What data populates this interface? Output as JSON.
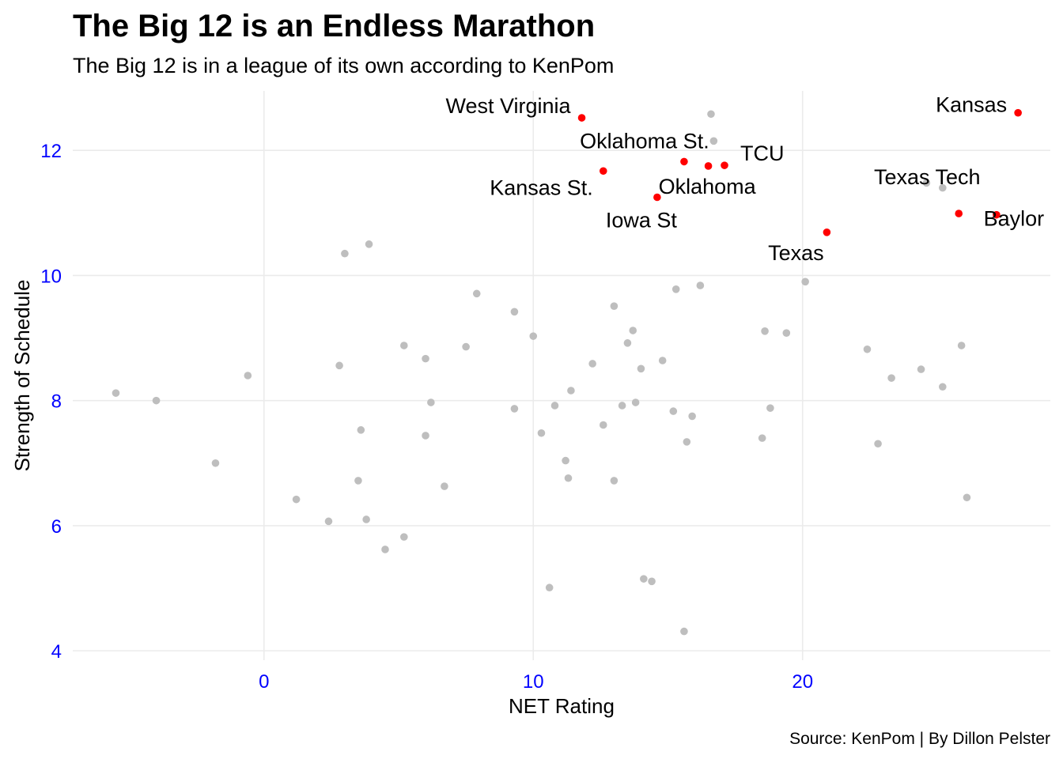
{
  "chart_data": {
    "type": "scatter",
    "title": "The Big 12 is an Endless Marathon",
    "subtitle": "The Big 12 is in a league of its own according to KenPom",
    "xlabel": "NET Rating",
    "ylabel": "Strength of Schedule",
    "caption": "Source: KenPom | By Dillon Pelster",
    "xlim": [
      -7.1,
      29.2
    ],
    "ylim": [
      3.85,
      12.95
    ],
    "xticks": [
      0,
      10,
      20
    ],
    "yticks": [
      4,
      6,
      8,
      10,
      12
    ],
    "tick_color": "#0000ff",
    "grid": true,
    "colors": {
      "background": "#ffffff",
      "grid": "#ebebeb",
      "other_points": "#bebebe",
      "highlight_points": "#ff0000",
      "tick_labels": "#0000ff"
    },
    "series": [
      {
        "name": "",
        "color": "#bebebe",
        "points": [
          {
            "x": -5.5,
            "y": 8.12
          },
          {
            "x": -4.0,
            "y": 8.0
          },
          {
            "x": -1.8,
            "y": 7.0
          },
          {
            "x": -0.6,
            "y": 8.4
          },
          {
            "x": 1.2,
            "y": 6.42
          },
          {
            "x": 2.4,
            "y": 6.07
          },
          {
            "x": 2.8,
            "y": 8.56
          },
          {
            "x": 3.0,
            "y": 10.35
          },
          {
            "x": 3.5,
            "y": 6.72
          },
          {
            "x": 3.6,
            "y": 7.53
          },
          {
            "x": 3.8,
            "y": 6.1
          },
          {
            "x": 3.9,
            "y": 10.5
          },
          {
            "x": 4.5,
            "y": 5.62
          },
          {
            "x": 5.2,
            "y": 8.88
          },
          {
            "x": 5.2,
            "y": 5.82
          },
          {
            "x": 6.0,
            "y": 8.67
          },
          {
            "x": 6.0,
            "y": 7.44
          },
          {
            "x": 6.2,
            "y": 7.97
          },
          {
            "x": 6.7,
            "y": 6.63
          },
          {
            "x": 7.5,
            "y": 8.86
          },
          {
            "x": 7.9,
            "y": 9.71
          },
          {
            "x": 9.3,
            "y": 9.42
          },
          {
            "x": 9.3,
            "y": 7.87
          },
          {
            "x": 10.0,
            "y": 9.03
          },
          {
            "x": 10.3,
            "y": 7.48
          },
          {
            "x": 10.6,
            "y": 5.01
          },
          {
            "x": 10.8,
            "y": 7.92
          },
          {
            "x": 11.2,
            "y": 7.04
          },
          {
            "x": 11.3,
            "y": 6.76
          },
          {
            "x": 11.4,
            "y": 8.16
          },
          {
            "x": 12.2,
            "y": 8.59
          },
          {
            "x": 12.6,
            "y": 7.61
          },
          {
            "x": 13.0,
            "y": 9.51
          },
          {
            "x": 13.0,
            "y": 6.72
          },
          {
            "x": 13.3,
            "y": 7.92
          },
          {
            "x": 13.5,
            "y": 8.92
          },
          {
            "x": 13.7,
            "y": 9.12
          },
          {
            "x": 13.8,
            "y": 7.97
          },
          {
            "x": 14.0,
            "y": 8.51
          },
          {
            "x": 14.1,
            "y": 5.15
          },
          {
            "x": 14.4,
            "y": 5.11
          },
          {
            "x": 14.8,
            "y": 8.64
          },
          {
            "x": 15.2,
            "y": 7.83
          },
          {
            "x": 15.3,
            "y": 9.78
          },
          {
            "x": 15.6,
            "y": 4.31
          },
          {
            "x": 15.7,
            "y": 7.34
          },
          {
            "x": 15.9,
            "y": 7.75
          },
          {
            "x": 16.2,
            "y": 9.84
          },
          {
            "x": 16.6,
            "y": 12.58
          },
          {
            "x": 16.7,
            "y": 12.15
          },
          {
            "x": 18.5,
            "y": 7.4
          },
          {
            "x": 18.6,
            "y": 9.11
          },
          {
            "x": 18.8,
            "y": 7.88
          },
          {
            "x": 19.4,
            "y": 9.08
          },
          {
            "x": 20.1,
            "y": 9.9
          },
          {
            "x": 22.4,
            "y": 8.82
          },
          {
            "x": 22.8,
            "y": 7.31
          },
          {
            "x": 23.3,
            "y": 8.36
          },
          {
            "x": 24.4,
            "y": 8.5
          },
          {
            "x": 24.6,
            "y": 11.48
          },
          {
            "x": 25.2,
            "y": 11.4
          },
          {
            "x": 25.2,
            "y": 8.22
          },
          {
            "x": 25.9,
            "y": 8.88
          },
          {
            "x": 26.1,
            "y": 6.45
          }
        ]
      },
      {
        "name": "",
        "color": "#ff0000",
        "points": [
          {
            "x": 11.8,
            "y": 12.52,
            "label": "West Virginia"
          },
          {
            "x": 28.0,
            "y": 12.6,
            "label": "Kansas"
          },
          {
            "x": 15.6,
            "y": 11.82,
            "label": "Oklahoma St."
          },
          {
            "x": 16.5,
            "y": 11.75,
            "label": "Oklahoma"
          },
          {
            "x": 17.1,
            "y": 11.76,
            "label": "TCU"
          },
          {
            "x": 12.6,
            "y": 11.67,
            "label": "Kansas St."
          },
          {
            "x": 14.6,
            "y": 11.25,
            "label": "Iowa St"
          },
          {
            "x": 25.8,
            "y": 10.99,
            "label": "Texas Tech"
          },
          {
            "x": 27.2,
            "y": 10.97,
            "label": "Baylor"
          },
          {
            "x": 20.9,
            "y": 10.69,
            "label": "Texas"
          }
        ]
      }
    ]
  }
}
